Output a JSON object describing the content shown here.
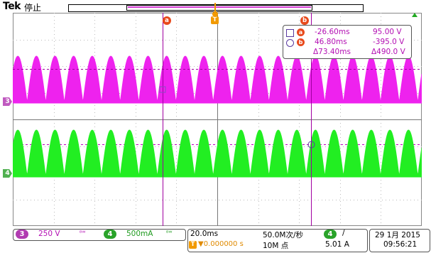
{
  "header": {
    "brand": "Tek",
    "acq_state": "停止"
  },
  "cursors": {
    "a_label": "a",
    "b_label": "b",
    "trigger_label": "T",
    "a_time": "-26.60ms",
    "a_volt": "95.00 V",
    "b_time": "46.80ms",
    "b_volt": "-395.0 V",
    "delta_time": "Δ73.40ms",
    "delta_volt": "Δ490.0 V"
  },
  "channels": {
    "ch3_marker": "3",
    "ch4_marker": "4",
    "ch3_color": "#ee22ee",
    "ch4_color": "#22ee22"
  },
  "status": {
    "ch3_num": "3",
    "ch3_scale": "250 V",
    "ch3_bw": "ᴮᵂ",
    "ch4_num": "4",
    "ch4_scale": "500mA",
    "ch4_bw": "ᴮᵂ",
    "timebase": "20.0ms",
    "sample_rate": "50.0M次/秒",
    "trig_ch": "4",
    "trig_slope": "/",
    "trig_pos": "▼0.000000 s",
    "trig_T": "T",
    "record_len": "10M 点",
    "trig_level": "5.01 A",
    "date": "29 1月 2015",
    "time": "09:56:21"
  }
}
